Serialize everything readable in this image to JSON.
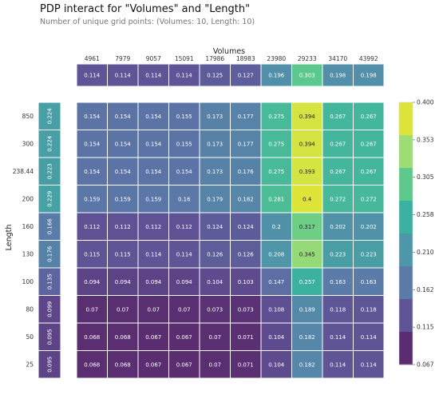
{
  "chart_data": {
    "type": "heatmap",
    "title": "PDP interact for \"Volumes\" and \"Length\"",
    "subtitle": "Number of unique grid points: (Volumes: 10, Length: 10)",
    "xlabel": "Volumes",
    "ylabel": "Length",
    "x_categories": [
      "4961",
      "7979",
      "9057",
      "15091",
      "17986",
      "18983",
      "23980",
      "29233",
      "34170",
      "43992"
    ],
    "y_categories": [
      "850",
      "300",
      "238.44",
      "200",
      "160",
      "130",
      "100",
      "80",
      "50",
      "25"
    ],
    "x_marginal": {
      "values": [
        0.114,
        0.114,
        0.114,
        0.114,
        0.125,
        0.127,
        0.196,
        0.303,
        0.198,
        0.198
      ],
      "labels": [
        "0.114",
        "0.114",
        "0.114",
        "0.114",
        "0.125",
        "0.127",
        "0.196",
        "0.303",
        "0.198",
        "0.198"
      ]
    },
    "y_marginal": {
      "values": [
        0.224,
        0.224,
        0.223,
        0.229,
        0.166,
        0.176,
        0.135,
        0.099,
        0.095,
        0.095
      ],
      "labels": [
        "0.224",
        "0.224",
        "0.223",
        "0.229",
        "0.166",
        "0.176",
        "0.135",
        "0.099",
        "0.095",
        "0.095"
      ]
    },
    "values": [
      [
        0.154,
        0.154,
        0.154,
        0.155,
        0.173,
        0.177,
        0.275,
        0.394,
        0.267,
        0.267
      ],
      [
        0.154,
        0.154,
        0.154,
        0.155,
        0.173,
        0.177,
        0.275,
        0.394,
        0.267,
        0.267
      ],
      [
        0.154,
        0.154,
        0.154,
        0.154,
        0.173,
        0.176,
        0.275,
        0.393,
        0.267,
        0.267
      ],
      [
        0.159,
        0.159,
        0.159,
        0.16,
        0.179,
        0.182,
        0.281,
        0.4,
        0.272,
        0.272
      ],
      [
        0.112,
        0.112,
        0.112,
        0.112,
        0.124,
        0.124,
        0.2,
        0.317,
        0.202,
        0.202
      ],
      [
        0.115,
        0.115,
        0.114,
        0.114,
        0.126,
        0.126,
        0.208,
        0.345,
        0.223,
        0.223
      ],
      [
        0.094,
        0.094,
        0.094,
        0.094,
        0.104,
        0.103,
        0.147,
        0.257,
        0.163,
        0.163
      ],
      [
        0.07,
        0.07,
        0.07,
        0.07,
        0.073,
        0.073,
        0.108,
        0.189,
        0.118,
        0.118
      ],
      [
        0.068,
        0.068,
        0.067,
        0.067,
        0.07,
        0.071,
        0.104,
        0.182,
        0.114,
        0.114
      ],
      [
        0.068,
        0.068,
        0.067,
        0.067,
        0.07,
        0.071,
        0.104,
        0.182,
        0.114,
        0.114
      ]
    ],
    "labels": [
      [
        "0.154",
        "0.154",
        "0.154",
        "0.155",
        "0.173",
        "0.177",
        "0.275",
        "0.394",
        "0.267",
        "0.267"
      ],
      [
        "0.154",
        "0.154",
        "0.154",
        "0.155",
        "0.173",
        "0.177",
        "0.275",
        "0.394",
        "0.267",
        "0.267"
      ],
      [
        "0.154",
        "0.154",
        "0.154",
        "0.154",
        "0.173",
        "0.176",
        "0.275",
        "0.393",
        "0.267",
        "0.267"
      ],
      [
        "0.159",
        "0.159",
        "0.159",
        "0.16",
        "0.179",
        "0.182",
        "0.281",
        "0.4",
        "0.272",
        "0.272"
      ],
      [
        "0.112",
        "0.112",
        "0.112",
        "0.112",
        "0.124",
        "0.124",
        "0.2",
        "0.317",
        "0.202",
        "0.202"
      ],
      [
        "0.115",
        "0.115",
        "0.114",
        "0.114",
        "0.126",
        "0.126",
        "0.208",
        "0.345",
        "0.223",
        "0.223"
      ],
      [
        "0.094",
        "0.094",
        "0.094",
        "0.094",
        "0.104",
        "0.103",
        "0.147",
        "0.257",
        "0.163",
        "0.163"
      ],
      [
        "0.07",
        "0.07",
        "0.07",
        "0.07",
        "0.073",
        "0.073",
        "0.108",
        "0.189",
        "0.118",
        "0.118"
      ],
      [
        "0.068",
        "0.068",
        "0.067",
        "0.067",
        "0.07",
        "0.071",
        "0.104",
        "0.182",
        "0.114",
        "0.114"
      ],
      [
        "0.068",
        "0.068",
        "0.067",
        "0.067",
        "0.07",
        "0.071",
        "0.104",
        "0.182",
        "0.114",
        "0.114"
      ]
    ],
    "colorbar": {
      "min": 0.067,
      "max": 0.4,
      "tick_labels": [
        "0.067",
        "0.115",
        "0.162",
        "0.210",
        "0.258",
        "0.305",
        "0.353",
        "0.400"
      ],
      "colors": [
        "#5a2d70",
        "#5e5496",
        "#5b7aa8",
        "#4e97a8",
        "#3cb1a0",
        "#5ec98c",
        "#9fdc74",
        "#dde53b"
      ],
      "placement": "right"
    },
    "grid": false
  }
}
